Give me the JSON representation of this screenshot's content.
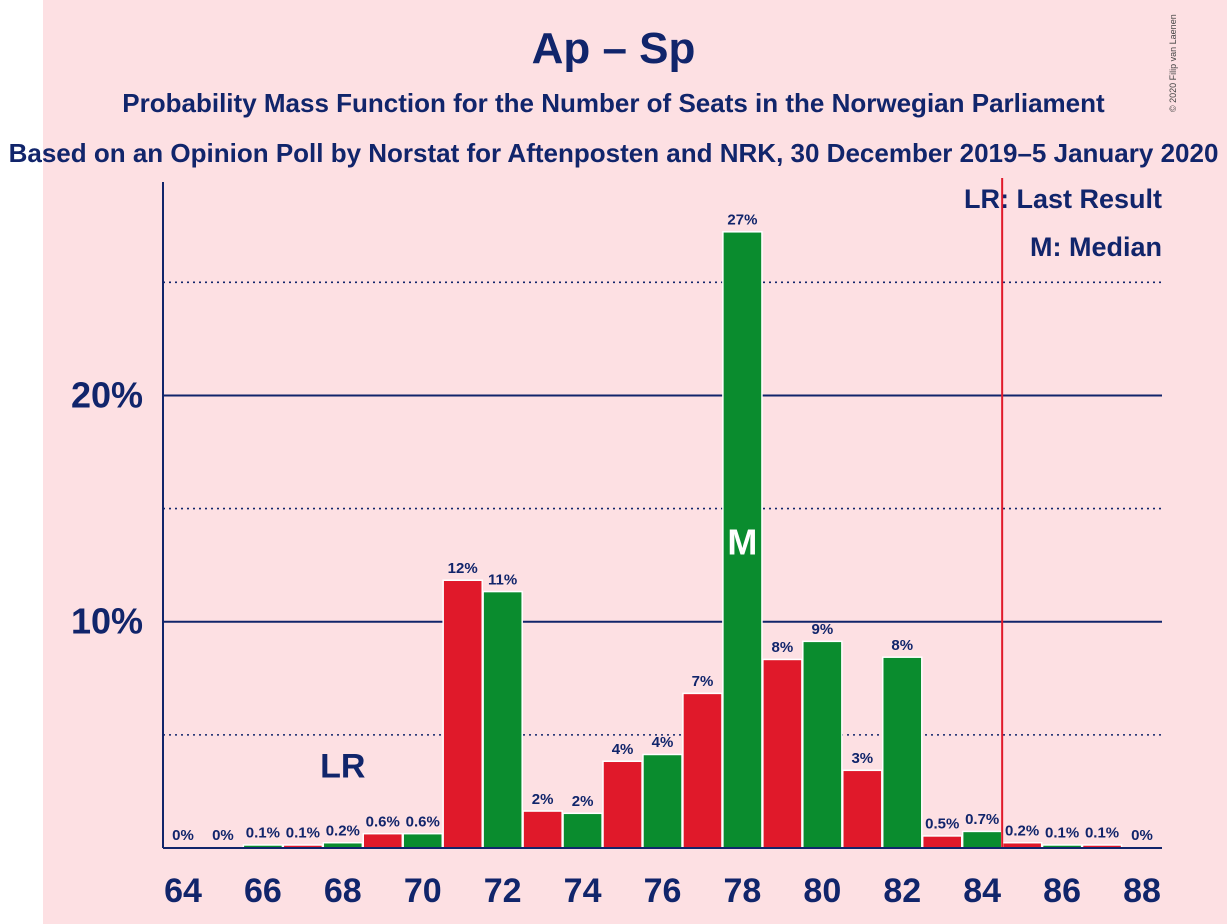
{
  "header": {
    "title": "Ap – Sp",
    "subtitle": "Probability Mass Function for the Number of Seats in the Norwegian Parliament",
    "source": "Based on an Opinion Poll by Norstat for Aftenposten and NRK, 30 December 2019–5 January 2020",
    "copyright": "© 2020 Filip van Laenen"
  },
  "legend": {
    "last_result": "LR: Last Result",
    "median": "M: Median"
  },
  "chart_data": {
    "type": "bar",
    "categories": [
      64,
      65,
      66,
      67,
      68,
      69,
      70,
      71,
      72,
      73,
      74,
      75,
      76,
      77,
      78,
      79,
      80,
      81,
      82,
      83,
      84,
      85,
      86,
      87,
      88
    ],
    "values": [
      0,
      0,
      0.1,
      0.1,
      0.2,
      0.6,
      0.6,
      11.8,
      11.3,
      1.6,
      1.5,
      3.8,
      4.1,
      6.8,
      27.2,
      8.3,
      9.1,
      3.4,
      8.4,
      0.5,
      0.7,
      0.2,
      0.1,
      0.1,
      0
    ],
    "data_labels": [
      "0%",
      "0%",
      "0.1%",
      "0.1%",
      "0.2%",
      "0.6%",
      "0.6%",
      "12%",
      "11%",
      "2%",
      "2%",
      "4%",
      "4%",
      "7%",
      "27%",
      "8%",
      "9%",
      "3%",
      "8%",
      "0.5%",
      "0.7%",
      "0.2%",
      "0.1%",
      "0.1%",
      "0%"
    ],
    "x_tick_labels": [
      "64",
      "66",
      "68",
      "70",
      "72",
      "74",
      "76",
      "78",
      "80",
      "82",
      "84",
      "86",
      "88"
    ],
    "y_tick_labels": [
      "10%",
      "20%"
    ],
    "y_ticks": [
      10,
      20
    ],
    "y_minor_gridlines": [
      5,
      15,
      25
    ],
    "ylim": [
      0,
      29.7
    ],
    "xlim": [
      63.5,
      88.5
    ],
    "bar_colors": [
      "#0a8c2e",
      "#e0192a"
    ],
    "grid_color": "#11256b",
    "text_color": "#11256b",
    "last_result_seat": 68,
    "last_result_label": "LR",
    "last_result_line_x": 84.5,
    "last_result_line_color": "#e0192a",
    "median_seat": 78,
    "median_label": "M"
  }
}
